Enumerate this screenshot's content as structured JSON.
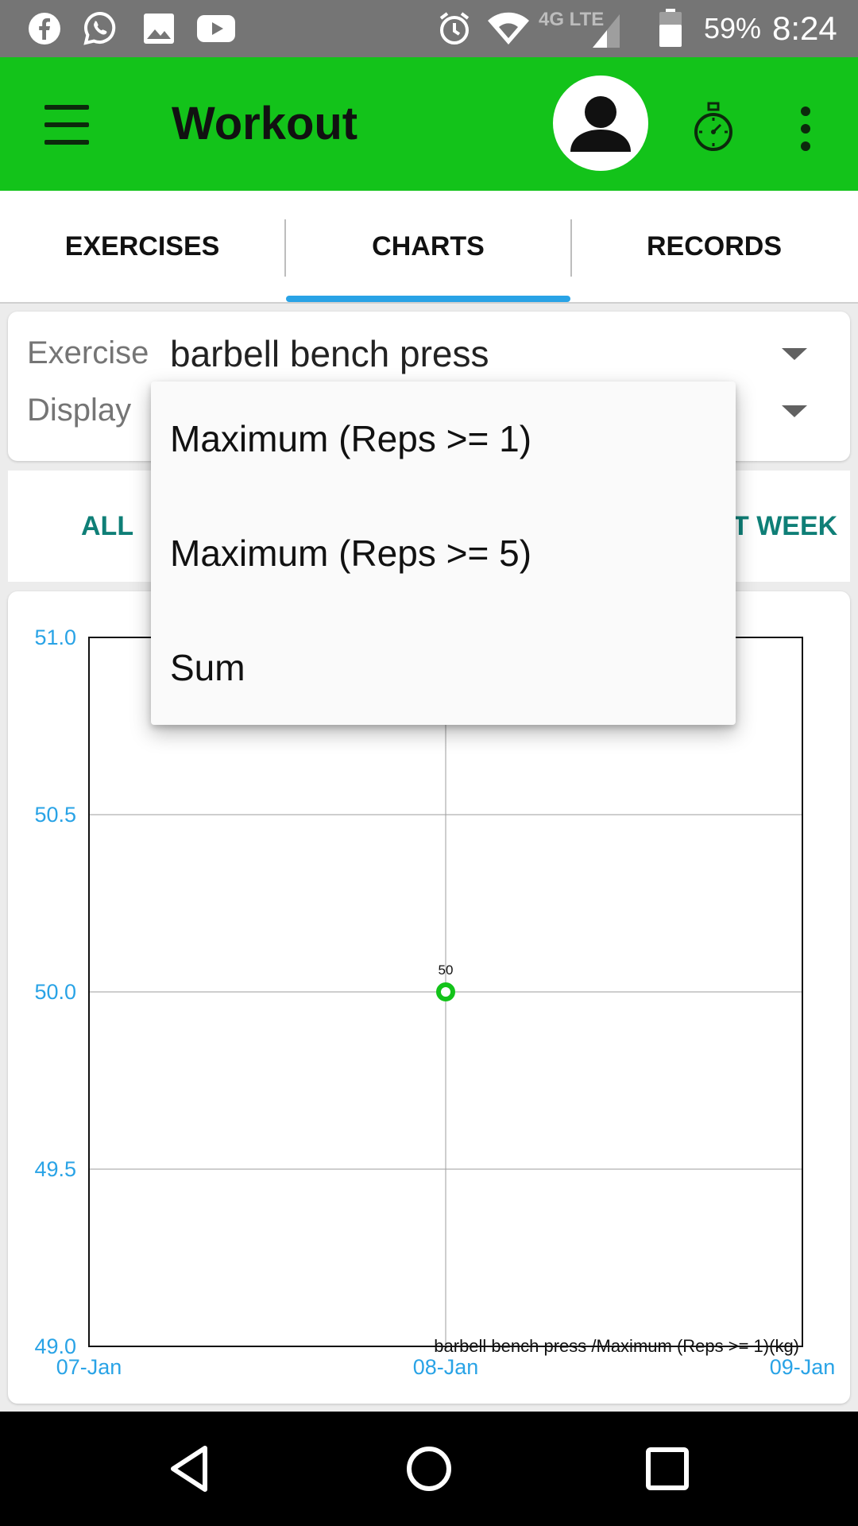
{
  "status_bar": {
    "battery": "59%",
    "time": "8:24",
    "network": "4G LTE",
    "left_icons": [
      "facebook-icon",
      "whatsapp-icon",
      "gallery-icon",
      "youtube-icon"
    ],
    "right_icons": [
      "alarm-icon",
      "wifi-icon",
      "signal-icon",
      "battery-icon"
    ]
  },
  "app_bar": {
    "title": "Workout",
    "color": "#13c31a",
    "icons": [
      "menu-icon",
      "avatar-icon",
      "stopwatch-icon",
      "more-vert-icon"
    ]
  },
  "tabs": {
    "items": [
      {
        "label": "EXERCISES"
      },
      {
        "label": "CHARTS",
        "selected": true
      },
      {
        "label": "RECORDS"
      }
    ],
    "indicator_color": "#29a3e6"
  },
  "selector": {
    "exercise_label": "Exercise",
    "exercise_value": "barbell bench press",
    "display_label": "Display"
  },
  "range": {
    "all": "ALL",
    "last_week_partial": "T WEEK",
    "color": "#0f7f77"
  },
  "dropdown": {
    "options": [
      "Maximum (Reps >= 1)",
      "Maximum (Reps >= 5)",
      "Sum"
    ]
  },
  "chart_data": {
    "type": "scatter",
    "title": "",
    "legend": "barbell bench press /Maximum (Reps >= 1)(kg)",
    "x_ticks": [
      "07-Jan",
      "08-Jan",
      "09-Jan"
    ],
    "y_ticks": [
      "49.0",
      "49.5",
      "50.0",
      "50.5",
      "51.0"
    ],
    "ylim": [
      49.0,
      51.0
    ],
    "grid": true,
    "points": [
      {
        "x": "08-Jan",
        "y": 50,
        "label": "50"
      }
    ],
    "point_color": "#13c31a",
    "tick_color": "#29a3e6"
  },
  "nav_bar": {
    "icons": [
      "back-icon",
      "home-icon",
      "recents-icon"
    ]
  }
}
